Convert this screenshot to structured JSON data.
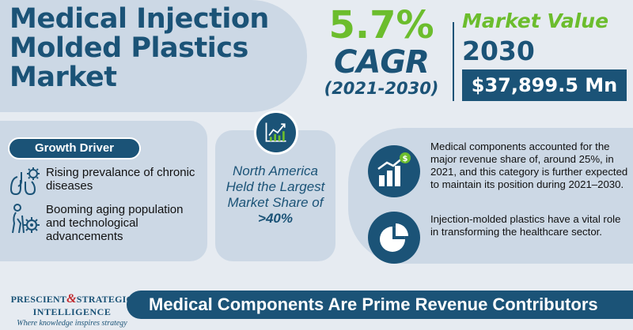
{
  "title": "Medical Injection Molded Plastics Market",
  "cagr": {
    "value": "5.7%",
    "label": "CAGR",
    "period": "(2021-2030)"
  },
  "market_value": {
    "label": "Market Value",
    "year": "2030",
    "amount": "$37,899.5 Mn"
  },
  "growth_driver": {
    "label": "Growth Driver",
    "items": [
      {
        "icon": "lungs-virus-icon",
        "text": "Rising prevalance of chronic diseases"
      },
      {
        "icon": "elderly-gear-icon",
        "text": "Booming aging population and technological advancements"
      }
    ]
  },
  "region": {
    "icon": "growth-chart-icon",
    "text": "North America Held the Largest Market Share of",
    "share": ">40%"
  },
  "insights": [
    {
      "icon": "bar-chart-dollar-icon",
      "text": "Medical components accounted for the major revenue share of, around 25%, in 2021, and this category is further expected to maintain its position during 2021–2030."
    },
    {
      "icon": "pie-chart-icon",
      "text": "Injection-molded plastics have a vital role in transforming the healthcare sector."
    }
  ],
  "logo": {
    "line1_a": "PRESCIENT",
    "amp": "&",
    "line1_b": "STRATEGIC",
    "line2": "INTELLIGENCE",
    "tagline": "Where knowledge inspires strategy"
  },
  "banner": "Medical Components Are Prime Revenue Contributors",
  "colors": {
    "navy": "#1b5377",
    "green": "#6cbd2d",
    "panel": "#ccd8e5",
    "bg": "#e6ebf1",
    "logo_red": "#c0282d"
  }
}
